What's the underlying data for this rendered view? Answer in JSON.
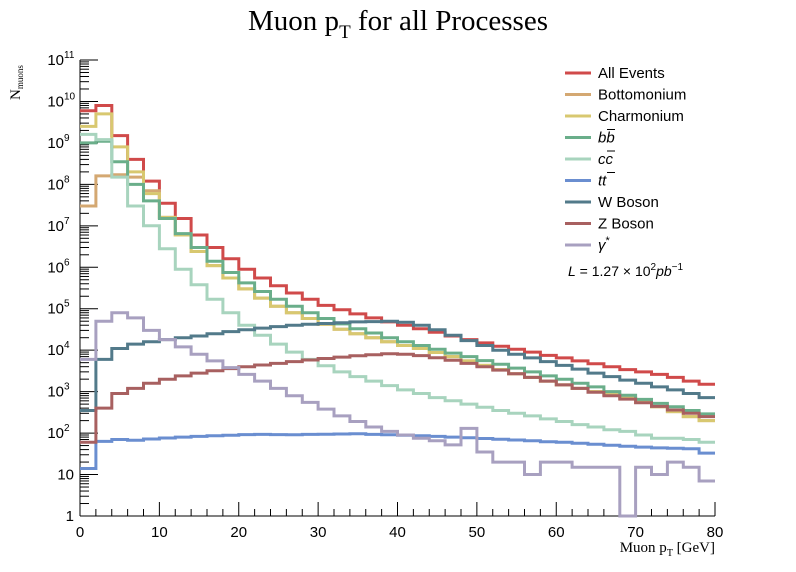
{
  "chart_data": {
    "type": "line",
    "title": "Muon p",
    "title_sub": "T",
    "title_rest": " for all Processes",
    "xlabel": "Muon p",
    "xlabel_sub": "T",
    "xlabel_rest": " [GeV]",
    "ylabel": "N",
    "ylabel_sub": "muons",
    "xlim": [
      0,
      80
    ],
    "ylim": [
      1,
      100000000000
    ],
    "log_y": true,
    "grid": false,
    "legend_position": "top-right",
    "x_ticks": [
      "0",
      "10",
      "20",
      "30",
      "40",
      "50",
      "60",
      "70",
      "80"
    ],
    "y_ticks": [
      "1",
      "10",
      "10",
      "10",
      "10",
      "10",
      "10",
      "10",
      "10",
      "10",
      "10",
      "10"
    ],
    "y_tick_exponents": [
      "",
      "",
      "2",
      "3",
      "4",
      "5",
      "6",
      "7",
      "8",
      "9",
      "10",
      "11"
    ],
    "luminosity_label": "L = 1.27 × 10",
    "luminosity_exp": "2",
    "luminosity_unit": "pb",
    "luminosity_unit_exp": "−1",
    "bin_edges": [
      0,
      2,
      4,
      6,
      8,
      10,
      12,
      14,
      16,
      18,
      20,
      22,
      24,
      26,
      28,
      30,
      32,
      34,
      36,
      38,
      40,
      42,
      44,
      46,
      48,
      50,
      52,
      54,
      56,
      58,
      60,
      62,
      64,
      66,
      68,
      70,
      72,
      74,
      76,
      78,
      80
    ],
    "series": [
      {
        "name": "All Events",
        "color": "#d04a4a",
        "values": [
          6000000000.0,
          8000000000.0,
          1500000000.0,
          400000000.0,
          120000000.0,
          35000000.0,
          15000000.0,
          6000000.0,
          3000000.0,
          1600000.0,
          900000.0,
          550000.0,
          360000.0,
          240000.0,
          170000.0,
          120000.0,
          95000.0,
          75000.0,
          60000.0,
          48000.0,
          40000.0,
          33000.0,
          27000.0,
          22000.0,
          18000.0,
          15000.0,
          12500.0,
          10500.0,
          9000.0,
          7500.0,
          6500.0,
          5500.0,
          4700.0,
          4000.0,
          3400.0,
          3000.0,
          2600.0,
          2200.0,
          1800.0,
          1500.0
        ]
      },
      {
        "name": "Bottomonium",
        "color": "#d4a872",
        "values": [
          30000000.0,
          160000000.0,
          170000000.0,
          150000000.0,
          70000000.0,
          16000000.0,
          6000000.0,
          2400000.0,
          1100000.0,
          550000.0,
          300000.0,
          180000.0,
          115000.0,
          80000.0,
          58000.0,
          42000.0,
          32000.0,
          25000.0,
          20000.0,
          16000.0,
          13000.0,
          11000.0,
          8800.0,
          7000.0,
          5500.0,
          4300.0,
          3400.0,
          2700.0,
          2200.0,
          1800.0,
          1450.0,
          1200.0,
          1000.0,
          850,
          700,
          560,
          430,
          330,
          250,
          200
        ]
      },
      {
        "name": "Charmonium",
        "color": "#d8c870",
        "values": [
          2500000000.0,
          5000000000.0,
          800000000.0,
          200000000.0,
          60000000.0,
          16000000.0,
          6000000.0,
          2400000.0,
          1100000.0,
          550000.0,
          300000.0,
          180000.0,
          115000.0,
          80000.0,
          58000.0,
          42000.0,
          32000.0,
          25000.0,
          20000.0,
          16000.0,
          13000.0,
          11000.0,
          8800.0,
          7000.0,
          5500.0,
          4300.0,
          3400.0,
          2700.0,
          2200.0,
          1800.0,
          1450.0,
          1200.0,
          1000.0,
          850,
          700,
          560,
          430,
          330,
          250,
          200
        ]
      },
      {
        "name": "bb",
        "color": "#6aae8a",
        "values": [
          1000000000.0,
          1100000000.0,
          350000000.0,
          100000000.0,
          40000000.0,
          15000000.0,
          6500000.0,
          3000000.0,
          1400000.0,
          750000.0,
          420000.0,
          260000.0,
          170000.0,
          115000.0,
          80000.0,
          58000.0,
          43000.0,
          33000.0,
          26000.0,
          20000.0,
          16000.0,
          13000.0,
          10500.0,
          8500.0,
          7000.0,
          5600.0,
          4600.0,
          3700.0,
          3000.0,
          2400.0,
          2000.0,
          1600.0,
          1300.0,
          1000.0,
          820,
          650,
          520,
          430,
          350,
          290
        ]
      },
      {
        "name": "cc",
        "color": "#a8d4be",
        "values": [
          1600000000.0,
          1200000000.0,
          150000000.0,
          30000000.0,
          10000000.0,
          2800000.0,
          900000.0,
          380000.0,
          170000.0,
          80000.0,
          40000.0,
          23000.0,
          14000.0,
          9000.0,
          6000.0,
          4200.0,
          3000.0,
          2300.0,
          1800.0,
          1400.0,
          1100.0,
          900,
          720,
          600,
          500,
          420,
          350,
          300,
          260,
          220,
          190,
          160,
          140,
          120,
          110,
          90,
          75,
          75,
          70,
          60
        ]
      },
      {
        "name": "tt",
        "color": "#6a8ed0",
        "values": [
          14,
          63,
          70,
          67,
          72,
          76,
          80,
          83,
          86,
          89,
          92,
          93,
          92,
          91,
          93,
          94,
          95,
          96,
          93,
          91,
          89,
          86,
          83,
          80,
          77,
          74,
          71,
          68,
          65,
          62,
          60,
          57,
          54,
          51,
          48,
          46,
          44,
          43,
          42,
          33
        ]
      },
      {
        "name": "W Boson",
        "color": "#527a8a",
        "values": [
          350,
          6000.0,
          11000.0,
          14000.0,
          16000.0,
          18000.0,
          20000.0,
          22000.0,
          25000.0,
          28000.0,
          31000.0,
          34000.0,
          37000.0,
          40000.0,
          42000.0,
          44000.0,
          46000.0,
          48000.0,
          49000.0,
          50000.0,
          47000.0,
          40000.0,
          31000.0,
          23000.0,
          17000.0,
          13000.0,
          10000.0,
          8000.0,
          6500.0,
          5300.0,
          4300.0,
          3500.0,
          2800.0,
          2300.0,
          1900.0,
          1600.0,
          1300.0,
          1100.0,
          900,
          720
        ]
      },
      {
        "name": "Z Boson",
        "color": "#a86060",
        "values": [
          60,
          400,
          900,
          1200.0,
          1600.0,
          2000.0,
          2400.0,
          2800.0,
          3200.0,
          3600.0,
          4000.0,
          4400.0,
          4800.0,
          5300.0,
          5800.0,
          6300.0,
          6800.0,
          7300.0,
          7800.0,
          8200.0,
          8000.0,
          7400.0,
          6600.0,
          5700.0,
          4800.0,
          4000.0,
          3300.0,
          2700.0,
          2200.0,
          1800.0,
          1450.0,
          1200.0,
          970,
          800,
          660,
          540,
          440,
          360,
          300,
          250
        ]
      },
      {
        "name": "γ*",
        "color": "#a8a0c0",
        "values": [
          6000.0,
          50000.0,
          80000.0,
          60000.0,
          30000.0,
          18000.0,
          12000.0,
          8000.0,
          5500.0,
          3800.0,
          2600.0,
          1800.0,
          1200.0,
          800,
          550,
          380,
          260,
          190,
          140,
          110,
          90,
          75,
          65,
          52,
          130,
          35,
          20,
          20,
          10,
          20,
          20,
          15,
          15,
          15,
          1,
          15,
          10,
          20,
          15,
          7
        ]
      }
    ]
  }
}
